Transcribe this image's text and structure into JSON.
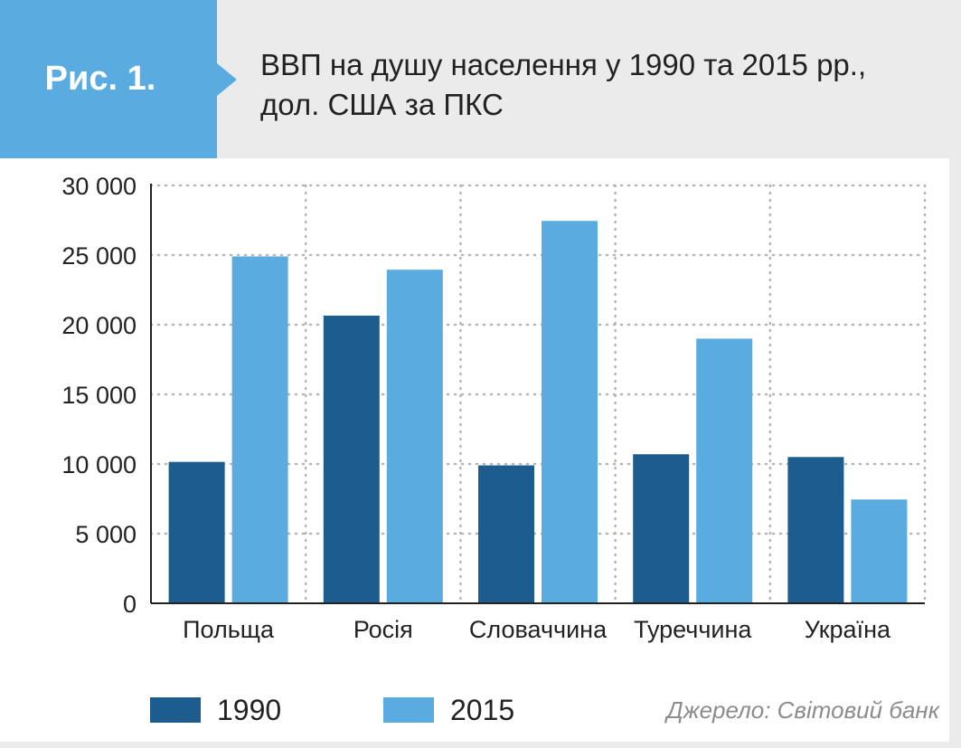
{
  "header": {
    "badge": "Рис. 1.",
    "title_line1": "ВВП на душу населення у 1990 та 2015 рр.,",
    "title_line2": "дол. США за ПКС"
  },
  "colors": {
    "series_1990": "#1d5c8e",
    "series_2015": "#5aace0",
    "badge": "#5aace0",
    "grid": "#b5b5b5"
  },
  "chart_data": {
    "type": "bar",
    "categories": [
      "Польща",
      "Росія",
      "Словаччина",
      "Туреччина",
      "Україна"
    ],
    "series": [
      {
        "name": "1990",
        "values": [
          10150,
          20650,
          9900,
          10700,
          10500
        ]
      },
      {
        "name": "2015",
        "values": [
          24900,
          23950,
          27450,
          19000,
          7450
        ]
      }
    ],
    "y_ticks": [
      "30 000",
      "25 000",
      "20 000",
      "15 000",
      "10 000",
      "5 000",
      "0"
    ],
    "ylim": [
      0,
      30000
    ],
    "grid": true,
    "legend": "bottom-left"
  },
  "legend": {
    "label_1990": "1990",
    "label_2015": "2015"
  },
  "source": "Джерело: Світовий банк"
}
